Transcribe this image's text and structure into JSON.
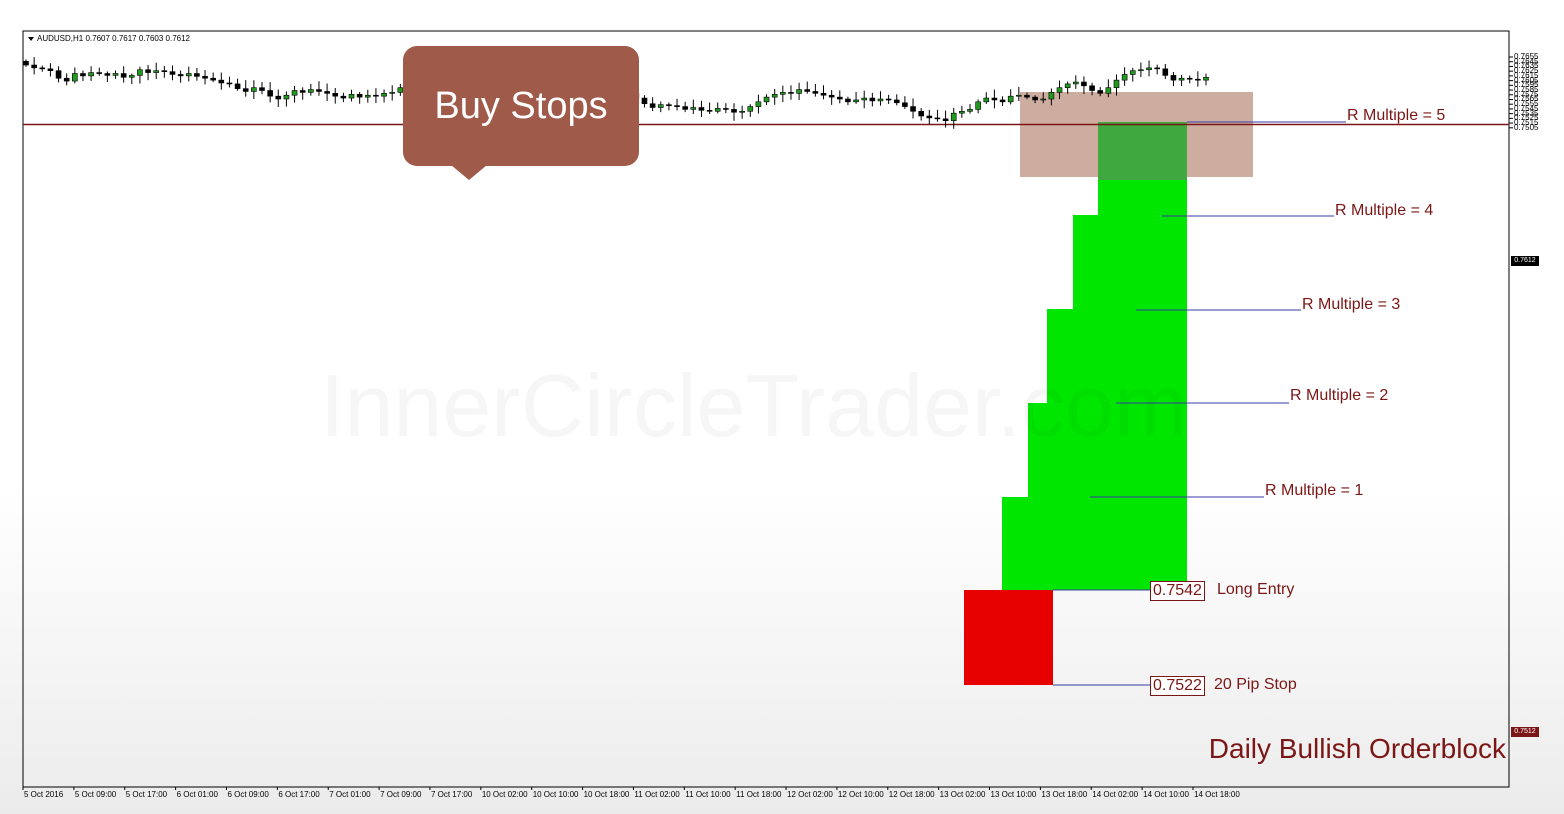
{
  "symbol_info": "AUDUSD,H1  0.7607 0.7617 0.7603 0.7612",
  "watermark": "InnerCircleTrader.com",
  "callout": {
    "text": "Buy Stops"
  },
  "r_multiples": [
    {
      "label": "R Multiple = 5",
      "price": 0.7642
    },
    {
      "label": "R Multiple = 4",
      "price": 0.7622
    },
    {
      "label": "R Multiple = 3",
      "price": 0.7602
    },
    {
      "label": "R Multiple = 2",
      "price": 0.7582
    },
    {
      "label": "R Multiple = 1",
      "price": 0.7562
    }
  ],
  "entry": {
    "price_text": "0.7542",
    "label": "Long Entry",
    "price": 0.7542
  },
  "stop": {
    "price_text": "0.7522",
    "label": "20 Pip Stop",
    "price": 0.7522
  },
  "orderblock": {
    "label": "Daily Bullish Orderblock",
    "price": 0.7512,
    "price_text": "0.7512"
  },
  "current_price": {
    "price": 0.7612,
    "text": "0.7612"
  },
  "colors": {
    "bull": "#1f9a1f",
    "bear": "#000000",
    "target_zone": "#00e600",
    "stop_zone": "#e60000",
    "buy_stops_zone": "#c9a497",
    "label_text": "#7b1616",
    "callout": "#a05a4a"
  },
  "chart_data": {
    "type": "candlestick",
    "symbol": "AUDUSD",
    "timeframe": "H1",
    "ylim": [
      0.7501,
      0.766
    ],
    "y_ticks": [
      "0.7655",
      "0.7645",
      "0.7635",
      "0.7625",
      "0.7615",
      "0.7605",
      "0.7595",
      "0.7585",
      "0.7575",
      "0.7565",
      "0.7555",
      "0.7545",
      "0.7535",
      "0.7525",
      "0.7515",
      "0.7505"
    ],
    "x_ticks": [
      "5 Oct 2016",
      "5 Oct 09:00",
      "5 Oct 17:00",
      "6 Oct 01:00",
      "6 Oct 09:00",
      "6 Oct 17:00",
      "7 Oct 01:00",
      "7 Oct 09:00",
      "7 Oct 17:00",
      "10 Oct 02:00",
      "10 Oct 10:00",
      "10 Oct 18:00",
      "11 Oct 02:00",
      "11 Oct 10:00",
      "11 Oct 18:00",
      "12 Oct 02:00",
      "12 Oct 10:00",
      "12 Oct 18:00",
      "13 Oct 02:00",
      "13 Oct 10:00",
      "13 Oct 18:00",
      "14 Oct 02:00",
      "14 Oct 10:00",
      "14 Oct 18:00"
    ],
    "close_path": [
      0.7638,
      0.7632,
      0.763,
      0.7626,
      0.761,
      0.7604,
      0.762,
      0.7615,
      0.7622,
      0.762,
      0.7616,
      0.762,
      0.7612,
      0.7616,
      0.7628,
      0.7622,
      0.7626,
      0.7624,
      0.7618,
      0.7615,
      0.762,
      0.7614,
      0.761,
      0.7606,
      0.76,
      0.7598,
      0.7588,
      0.7582,
      0.759,
      0.7584,
      0.7572,
      0.7566,
      0.7574,
      0.7584,
      0.758,
      0.7586,
      0.7582,
      0.7578,
      0.7572,
      0.7568,
      0.7576,
      0.757,
      0.7574,
      0.7572,
      0.7578,
      0.758,
      0.759,
      0.761,
      0.76,
      0.756,
      0.7574,
      0.758,
      0.7584,
      0.759,
      0.7596,
      0.7598,
      0.7592,
      0.7594,
      0.759,
      0.7592,
      0.7588,
      0.759,
      0.7594,
      0.7598,
      0.7602,
      0.7612,
      0.7618,
      0.7614,
      0.7606,
      0.7604,
      0.7606,
      0.7604,
      0.7598,
      0.7586,
      0.7578,
      0.7568,
      0.7556,
      0.7548,
      0.7554,
      0.7552,
      0.755,
      0.7544,
      0.7548,
      0.7542,
      0.754,
      0.7546,
      0.7544,
      0.7538,
      0.754,
      0.755,
      0.756,
      0.757,
      0.7576,
      0.758,
      0.7578,
      0.7586,
      0.7582,
      0.7578,
      0.7574,
      0.757,
      0.7566,
      0.756,
      0.7564,
      0.7568,
      0.7562,
      0.7566,
      0.7564,
      0.7558,
      0.755,
      0.754,
      0.753,
      0.7526,
      0.7524,
      0.752,
      0.7536,
      0.754,
      0.7544,
      0.756,
      0.7568,
      0.7564,
      0.756,
      0.7572,
      0.7574,
      0.757,
      0.7564,
      0.7566,
      0.758,
      0.759,
      0.7598,
      0.7602,
      0.7594,
      0.7584,
      0.7578,
      0.759,
      0.7606,
      0.7618,
      0.7626,
      0.7628,
      0.7632,
      0.763,
      0.7616,
      0.7606,
      0.761,
      0.7608,
      0.7606,
      0.7612
    ]
  }
}
